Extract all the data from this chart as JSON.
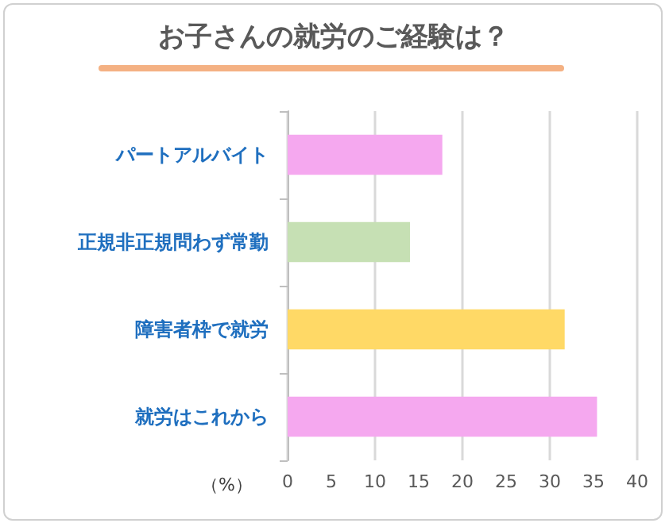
{
  "chart_data": {
    "type": "bar",
    "orientation": "horizontal",
    "title": "お子さんの就労のご経験は？",
    "xlabel": "（%）",
    "categories": [
      "パートアルバイト",
      "正規非正規問わず常勤",
      "障害者枠で就労",
      "就労はこれから"
    ],
    "values": [
      17.7,
      14.0,
      31.7,
      35.4
    ],
    "colors": [
      "#f5a8ef",
      "#c6e0b4",
      "#ffd966",
      "#f5a8ef"
    ],
    "xlim": [
      0,
      40
    ],
    "xticks": [
      0,
      5,
      10,
      15,
      20,
      25,
      30,
      35,
      40
    ],
    "grid": "x"
  }
}
